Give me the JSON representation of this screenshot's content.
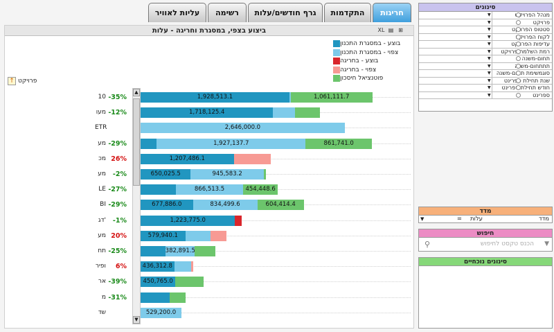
{
  "tabs": [
    {
      "label": "חריגות",
      "active": true
    },
    {
      "label": "התקדמות",
      "active": false
    },
    {
      "label": "גרף חודשים/עלות",
      "active": false
    },
    {
      "label": "רשימה",
      "active": false
    },
    {
      "label": "עליות לאוויר",
      "active": false
    }
  ],
  "panel": {
    "title": "ביצוע בצפי, במסגרת וחריגה - עלות",
    "icons": {
      "a": "XL",
      "b": "▤",
      "c": "⊞"
    },
    "project_header": "פרויקט",
    "up_icon": "↑"
  },
  "legend": [
    {
      "label": "בוצע - במסגרת התכנון",
      "color": "#2196c0"
    },
    {
      "label": "צפוי - במסגרת התכנון",
      "color": "#7ecbea"
    },
    {
      "label": "בוצע - בחריגה",
      "color": "#d9262c"
    },
    {
      "label": "צפוי - בחריגה",
      "color": "#f79a94"
    },
    {
      "label": "פוטנציאל חיסכון",
      "color": "#6cc56c"
    }
  ],
  "colors": {
    "done": "#2196c0",
    "forecast": "#7ecbea",
    "over_done": "#d9262c",
    "over_forecast": "#f79a94",
    "savings": "#6cc56c",
    "neg": "#1a8a1a",
    "pos": "#d41010"
  },
  "chart_data": {
    "type": "bar",
    "orientation": "horizontal",
    "stacked": true,
    "title": "ביצוע בצפי, במסגרת וחריגה - עלות",
    "xlim": [
      0,
      3500000
    ],
    "series": [
      "בוצע - במסגרת התכנון",
      "צפוי - במסגרת התכנון",
      "בוצע - בחריגה",
      "צפוי - בחריגה",
      "פוטנציאל חיסכון"
    ],
    "rows": [
      {
        "label": "10",
        "pct": "-35%",
        "values": [
          1928513.1,
          15000,
          0,
          0,
          1061111.7
        ],
        "labels": [
          "1,928,513.1",
          "",
          "",
          "",
          "1,061,111.7"
        ]
      },
      {
        "label": "מעו",
        "pct": "-12%",
        "values": [
          1718125.4,
          280000,
          0,
          0,
          330000
        ],
        "labels": [
          "1,718,125.4",
          "",
          "",
          "",
          ""
        ]
      },
      {
        "label": "ETR",
        "pct": "",
        "values": [
          0,
          2646000.0,
          0,
          0,
          0
        ],
        "labels": [
          "",
          "2,646,000.0",
          "",
          "",
          ""
        ]
      },
      {
        "label": "מע",
        "pct": "-29%",
        "values": [
          210000,
          1927137.7,
          0,
          0,
          861741.0
        ],
        "labels": [
          "",
          "1,927,137.7",
          "",
          "",
          "861,741.0"
        ]
      },
      {
        "label": "מכ",
        "pct": "26%",
        "values": [
          1207486.1,
          0,
          0,
          480000,
          0
        ],
        "labels": [
          "1,207,486.1",
          "",
          "",
          "",
          ""
        ]
      },
      {
        "label": "מע",
        "pct": "-2%",
        "values": [
          650025.5,
          945583.2,
          0,
          0,
          30000
        ],
        "labels": [
          "650,025.5",
          "945,583.2",
          "",
          "",
          ""
        ]
      },
      {
        "label": "LE",
        "pct": "-27%",
        "values": [
          460000,
          866513.5,
          0,
          0,
          454448.6
        ],
        "labels": [
          "",
          "866,513.5",
          "",
          "",
          "454,448.6"
        ]
      },
      {
        "label": "BI",
        "pct": "-29%",
        "values": [
          677886.0,
          834499.6,
          0,
          0,
          604414.4
        ],
        "labels": [
          "677,886.0",
          "834,499.6",
          "",
          "",
          "604,414.4"
        ]
      },
      {
        "label": "דג'",
        "pct": "-1%",
        "values": [
          1223775.0,
          0,
          90000,
          0,
          0
        ],
        "labels": [
          "1,223,775.0",
          "",
          "",
          "",
          ""
        ]
      },
      {
        "label": "מע",
        "pct": "20%",
        "values": [
          579940.1,
          330000,
          0,
          200000,
          0
        ],
        "labels": [
          "579,940.1",
          "",
          "",
          "",
          ""
        ]
      },
      {
        "label": "תח",
        "pct": "-25%",
        "values": [
          320000,
          382891.5,
          0,
          0,
          270000
        ],
        "labels": [
          "",
          "382,891.5",
          "",
          "",
          ""
        ]
      },
      {
        "label": "ופיר",
        "pct": "6%",
        "values": [
          436312.8,
          220000,
          0,
          30000,
          0
        ],
        "labels": [
          "436,312.8",
          "",
          "",
          "",
          ""
        ]
      },
      {
        "label": "אר",
        "pct": "-39%",
        "values": [
          450765.0,
          0,
          0,
          0,
          370000
        ],
        "labels": [
          "450,765.0",
          "",
          "",
          "",
          ""
        ]
      },
      {
        "label": "מ",
        "pct": "-31%",
        "values": [
          380000,
          0,
          0,
          0,
          200000
        ],
        "labels": [
          "",
          "",
          "",
          "",
          ""
        ]
      },
      {
        "label": "שד",
        "pct": "",
        "values": [
          0,
          529200.0,
          0,
          0,
          0
        ],
        "labels": [
          "",
          "529,200.0",
          "",
          "",
          ""
        ]
      }
    ]
  },
  "signals": {
    "title": "סינונים",
    "items": [
      "מנהל הפרויקט",
      "פרויקט",
      "סטטוס הפרויקט",
      "לקוח הפרויקט",
      "עדיפות הפרויקט",
      "רמת השלמת פרויקט",
      "תחום-משנה",
      "תתתחום-משנה",
      "סוגמשימת תחום-משנה",
      "שנת תחילת ספרינט",
      "חודש תחילת ספרינט",
      "ספרינט"
    ]
  },
  "measure": {
    "title": "מדד",
    "label": "מדד",
    "eq": "=",
    "value": "עלות"
  },
  "search": {
    "title": "חיפוש",
    "placeholder": "הכנס טקסט לחיפוש"
  },
  "active_filters": {
    "title": "סינונים נוכחיים"
  }
}
